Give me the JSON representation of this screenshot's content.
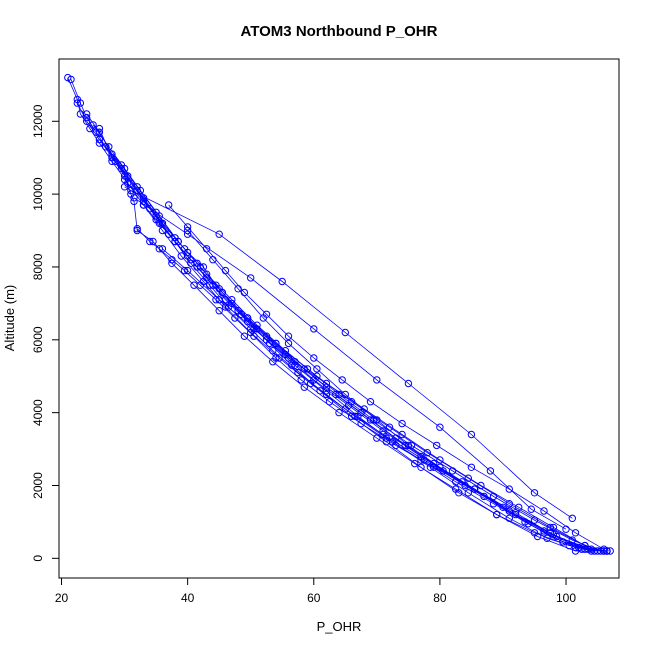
{
  "chart_data": {
    "type": "line",
    "title": "ATOM3 Northbound P_OHR",
    "xlabel": "P_OHR",
    "ylabel": "Altitude (m)",
    "xlim": [
      19.6,
      108.4
    ],
    "ylim": [
      -540,
      13710
    ],
    "xticks": [
      20,
      40,
      60,
      80,
      100
    ],
    "yticks": [
      0,
      2000,
      4000,
      6000,
      8000,
      10000,
      12000
    ],
    "color": "#0000ff",
    "marker": "open-circle",
    "grid": false,
    "legend": "none",
    "series": [
      {
        "x": [
          21.0,
          22.5,
          23.0,
          24.5,
          26.0,
          28.0,
          30.5,
          33.0,
          36.0,
          39.0,
          42.5,
          46.0,
          50.0,
          54.5,
          59.5,
          65.0,
          71.0,
          77.5,
          84.0,
          91.0,
          97.5,
          103.0,
          106.5
        ],
        "y": [
          13200,
          12600,
          12200,
          11800,
          11400,
          10900,
          10300,
          9700,
          9000,
          8300,
          7600,
          6900,
          6200,
          5500,
          4800,
          4100,
          3400,
          2700,
          2000,
          1300,
          700,
          250,
          200
        ]
      },
      {
        "x": [
          21.5,
          23.0,
          24.0,
          25.5,
          27.0,
          29.5,
          32.0,
          35.0,
          38.0,
          41.5,
          45.5,
          49.5,
          54.0,
          59.0,
          64.0,
          69.5,
          75.5,
          82.0,
          88.5,
          95.0,
          101.0,
          105.5
        ],
        "y": [
          13150,
          12500,
          12100,
          11700,
          11300,
          10700,
          10100,
          9400,
          8700,
          8000,
          7300,
          6600,
          5900,
          5200,
          4500,
          3800,
          3100,
          2400,
          1700,
          1050,
          500,
          200
        ]
      },
      {
        "x": [
          22.5,
          24.0,
          26.0,
          28.5,
          31.0,
          34.0,
          37.0,
          40.5,
          44.0,
          48.0,
          52.5,
          57.0,
          62.0,
          67.5,
          73.0,
          79.0,
          85.5,
          92.0,
          98.5,
          104.0,
          107.0
        ],
        "y": [
          12500,
          12000,
          11500,
          10900,
          10300,
          9600,
          8900,
          8200,
          7500,
          6800,
          6100,
          5400,
          4700,
          4000,
          3300,
          2600,
          1900,
          1200,
          600,
          250,
          200
        ]
      },
      {
        "x": [
          24.0,
          26.0,
          28.0,
          30.5,
          33.0,
          36.0,
          39.5,
          43.0,
          47.0,
          51.0,
          55.5,
          60.5,
          66.0,
          72.0,
          78.0,
          84.5,
          91.0,
          97.5,
          103.0,
          106.0
        ],
        "y": [
          12200,
          11700,
          11100,
          10500,
          9900,
          9200,
          8500,
          7800,
          7100,
          6400,
          5700,
          5000,
          4300,
          3600,
          2900,
          2200,
          1500,
          850,
          350,
          200
        ]
      },
      {
        "x": [
          25.0,
          27.5,
          30.0,
          32.5,
          35.5,
          38.5,
          42.0,
          45.5,
          49.5,
          54.0,
          58.5,
          63.5,
          69.0,
          74.5,
          80.5,
          87.0,
          93.5,
          99.5,
          104.5
        ],
        "y": [
          11900,
          11300,
          10700,
          10100,
          9400,
          8700,
          8000,
          7300,
          6600,
          5900,
          5200,
          4500,
          3800,
          3100,
          2400,
          1700,
          1000,
          450,
          200
        ]
      },
      {
        "x": [
          26.0,
          28.0,
          30.0,
          31.0,
          31.5,
          32.0,
          34.5,
          37.5,
          41.0,
          45.0,
          49.0,
          53.5,
          58.5,
          64.0,
          70.0,
          76.0,
          82.5,
          89.0,
          95.5,
          101.5,
          106.0
        ],
        "y": [
          11800,
          11000,
          10500,
          10000,
          9800,
          9000,
          8700,
          8100,
          7500,
          6800,
          6100,
          5400,
          4700,
          4000,
          3300,
          2600,
          1900,
          1200,
          600,
          200,
          200
        ]
      },
      {
        "x": [
          27.0,
          29.5,
          32.0,
          35.0,
          38.0,
          41.5,
          45.0,
          48.5,
          52.5,
          57.0,
          62.0,
          67.0,
          72.5,
          78.5,
          84.5,
          91.0,
          97.0,
          102.5,
          106.5
        ],
        "y": [
          11300,
          10800,
          10200,
          9500,
          8800,
          8100,
          7400,
          6700,
          6000,
          5300,
          4600,
          3900,
          3200,
          2500,
          1800,
          1100,
          550,
          250,
          200
        ]
      },
      {
        "x": [
          30.0,
          33.0,
          36.0,
          38.5,
          40.0,
          42.5,
          44.5,
          47.0,
          51.0,
          55.5,
          60.0,
          65.5,
          71.0,
          77.0,
          83.5,
          90.0,
          96.5,
          102.0
        ],
        "y": [
          10400,
          9800,
          9200,
          8700,
          8400,
          8000,
          7500,
          7000,
          6300,
          5600,
          4900,
          4200,
          3500,
          2800,
          2100,
          1400,
          750,
          300
        ]
      },
      {
        "x": [
          33.0,
          35.5,
          37.0,
          40.0,
          43.0,
          46.0,
          49.5,
          53.0,
          56.5,
          61.0,
          66.0,
          71.5,
          77.0,
          83.0,
          89.0,
          95.0,
          100.5,
          105.0
        ],
        "y": [
          9700,
          9200,
          8900,
          8300,
          7700,
          7100,
          6500,
          5900,
          5300,
          4600,
          3900,
          3200,
          2500,
          1800,
          1200,
          700,
          350,
          200
        ]
      },
      {
        "x": [
          35.0,
          38.0,
          40.5,
          43.5,
          46.5,
          50.0,
          53.5,
          57.5,
          62.0,
          66.5,
          71.5,
          77.0,
          82.5,
          88.5,
          94.0,
          99.5,
          104.0
        ],
        "y": [
          9300,
          8700,
          8100,
          7500,
          6900,
          6300,
          5700,
          5100,
          4500,
          3900,
          3300,
          2700,
          2100,
          1500,
          950,
          450,
          200
        ]
      },
      {
        "x": [
          37.0,
          40.0,
          43.0,
          46.0,
          49.0,
          52.5,
          56.0,
          60.0,
          64.5,
          69.0,
          74.0,
          79.5,
          85.0,
          91.0,
          96.5,
          101.5,
          106.0
        ],
        "y": [
          9700,
          9100,
          8500,
          7900,
          7300,
          6700,
          6100,
          5500,
          4900,
          4300,
          3700,
          3100,
          2500,
          1900,
          1300,
          700,
          250
        ]
      },
      {
        "x": [
          36.0,
          40.0,
          45.0,
          50.5,
          56.0,
          62.0,
          68.0,
          74.0,
          80.0,
          86.5,
          92.5,
          98.0,
          103.0
        ],
        "y": [
          8500,
          7900,
          7100,
          6300,
          5500,
          4800,
          4100,
          3400,
          2700,
          2000,
          1400,
          850,
          350
        ]
      },
      {
        "x": [
          40.0,
          44.0,
          48.0,
          52.0,
          56.0,
          60.5,
          65.0,
          70.0,
          75.0,
          80.0,
          85.5,
          91.0,
          96.5,
          101.5
        ],
        "y": [
          9000,
          8200,
          7400,
          6600,
          5900,
          5200,
          4500,
          3800,
          3100,
          2500,
          1900,
          1300,
          700,
          300
        ]
      },
      {
        "x": [
          32.0,
          34.0,
          35.5,
          37.5,
          39.5,
          42.0,
          44.5,
          47.5,
          50.5,
          54.0,
          58.0,
          62.5,
          67.5,
          73.0,
          79.0,
          85.5,
          92.0,
          98.0,
          103.5,
          106.5
        ],
        "y": [
          9050,
          8700,
          8500,
          8200,
          7900,
          7500,
          7100,
          6600,
          6100,
          5500,
          4900,
          4300,
          3700,
          3100,
          2500,
          1900,
          1250,
          650,
          250,
          200
        ]
      },
      {
        "x": [
          30.0,
          31.0,
          45.0,
          55.0,
          65.0,
          75.0,
          85.0,
          95.0,
          101.0
        ],
        "y": [
          10200,
          10100,
          8900,
          7600,
          6200,
          4800,
          3400,
          1800,
          1100
        ]
      },
      {
        "x": [
          31.5,
          40.0,
          50.0,
          60.0,
          70.0,
          80.0,
          88.0,
          94.5,
          100.0
        ],
        "y": [
          9900,
          8900,
          7700,
          6300,
          4900,
          3600,
          2400,
          1350,
          800
        ]
      }
    ]
  }
}
